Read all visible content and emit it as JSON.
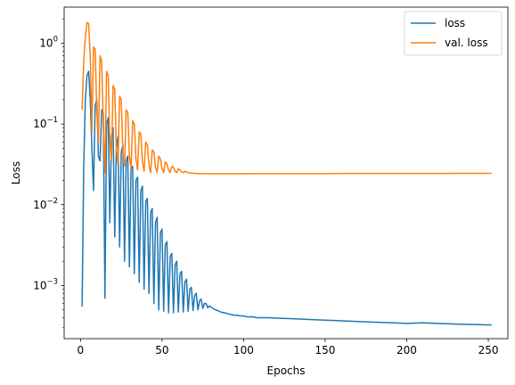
{
  "chart_data": {
    "type": "line",
    "title": "",
    "xlabel": "Epochs",
    "ylabel": "Loss",
    "xlim": [
      -10,
      262
    ],
    "ylim": [
      0.00022,
      2.8
    ],
    "yscale": "log",
    "grid": false,
    "legend_position": "upper right",
    "x_ticks": [
      0,
      50,
      100,
      150,
      200,
      250
    ],
    "x_tick_labels": [
      "0",
      "50",
      "100",
      "150",
      "200",
      "250"
    ],
    "y_ticks": [
      0.001,
      0.01,
      0.1,
      1
    ],
    "y_tick_labels": [
      {
        "base": "10",
        "exp": "−3"
      },
      {
        "base": "10",
        "exp": "−2"
      },
      {
        "base": "10",
        "exp": "−1"
      },
      {
        "base": "10",
        "exp": "0"
      }
    ],
    "series": [
      {
        "name": "loss",
        "color": "#1f77b4",
        "x": [
          1,
          2,
          3,
          4,
          5,
          6,
          7,
          8,
          9,
          10,
          11,
          12,
          13,
          14,
          15,
          16,
          17,
          18,
          19,
          20,
          21,
          22,
          23,
          24,
          25,
          26,
          27,
          28,
          29,
          30,
          31,
          32,
          33,
          34,
          35,
          36,
          37,
          38,
          39,
          40,
          41,
          42,
          43,
          44,
          45,
          46,
          47,
          48,
          49,
          50,
          51,
          52,
          53,
          54,
          55,
          56,
          57,
          58,
          59,
          60,
          61,
          62,
          63,
          64,
          65,
          66,
          67,
          68,
          69,
          70,
          71,
          72,
          73,
          74,
          75,
          76,
          77,
          78,
          79,
          80,
          82,
          84,
          86,
          88,
          90,
          92,
          94,
          96,
          98,
          100,
          102,
          104,
          106,
          108,
          110,
          115,
          120,
          130,
          140,
          150,
          160,
          170,
          180,
          190,
          200,
          210,
          220,
          230,
          240,
          252
        ],
        "y": [
          0.00055,
          0.03,
          0.2,
          0.4,
          0.45,
          0.2,
          0.05,
          0.015,
          0.17,
          0.2,
          0.04,
          0.035,
          0.15,
          0.14,
          0.0007,
          0.1,
          0.12,
          0.006,
          0.07,
          0.09,
          0.004,
          0.05,
          0.07,
          0.003,
          0.045,
          0.055,
          0.002,
          0.035,
          0.04,
          0.0017,
          0.028,
          0.03,
          0.0014,
          0.02,
          0.022,
          0.0011,
          0.015,
          0.017,
          0.0009,
          0.011,
          0.012,
          0.0008,
          0.008,
          0.009,
          0.0006,
          0.006,
          0.007,
          0.0005,
          0.0045,
          0.005,
          0.00048,
          0.0032,
          0.0035,
          0.00046,
          0.0023,
          0.0025,
          0.00046,
          0.0018,
          0.002,
          0.00047,
          0.0014,
          0.0015,
          0.00047,
          0.0011,
          0.0012,
          0.00048,
          0.0009,
          0.00095,
          0.00049,
          0.00075,
          0.0008,
          0.0005,
          0.00065,
          0.00068,
          0.00052,
          0.0006,
          0.0006,
          0.00053,
          0.00056,
          0.00054,
          0.00051,
          0.00049,
          0.00047,
          0.00046,
          0.00045,
          0.00044,
          0.00043,
          0.00043,
          0.00042,
          0.00042,
          0.00041,
          0.00041,
          0.00041,
          0.0004,
          0.0004,
          0.0004,
          0.000395,
          0.000388,
          0.00038,
          0.000373,
          0.000366,
          0.000359,
          0.000352,
          0.000346,
          0.00034,
          0.000345,
          0.000339,
          0.000334,
          0.000329,
          0.000325
        ]
      },
      {
        "name": "val. loss",
        "color": "#ff7f0e",
        "x": [
          1,
          2,
          3,
          4,
          5,
          6,
          7,
          8,
          9,
          10,
          11,
          12,
          13,
          14,
          15,
          16,
          17,
          18,
          19,
          20,
          21,
          22,
          23,
          24,
          25,
          26,
          27,
          28,
          29,
          30,
          31,
          32,
          33,
          34,
          35,
          36,
          37,
          38,
          39,
          40,
          41,
          42,
          43,
          44,
          45,
          46,
          47,
          48,
          49,
          50,
          51,
          52,
          53,
          54,
          55,
          56,
          57,
          58,
          59,
          60,
          61,
          62,
          63,
          64,
          65,
          66,
          67,
          68,
          69,
          70,
          72,
          74,
          76,
          78,
          80,
          85,
          90,
          100,
          110,
          120,
          130,
          140,
          150,
          160,
          170,
          180,
          190,
          200,
          210,
          220,
          230,
          240,
          252
        ],
        "y": [
          0.15,
          0.6,
          1.2,
          1.8,
          1.75,
          0.7,
          0.08,
          0.9,
          0.85,
          0.15,
          0.06,
          0.7,
          0.6,
          0.1,
          0.025,
          0.45,
          0.4,
          0.06,
          0.035,
          0.3,
          0.27,
          0.05,
          0.032,
          0.22,
          0.2,
          0.045,
          0.03,
          0.15,
          0.14,
          0.04,
          0.028,
          0.11,
          0.1,
          0.037,
          0.027,
          0.08,
          0.075,
          0.034,
          0.026,
          0.06,
          0.055,
          0.031,
          0.025,
          0.048,
          0.045,
          0.029,
          0.025,
          0.04,
          0.037,
          0.028,
          0.025,
          0.034,
          0.032,
          0.027,
          0.025,
          0.03,
          0.029,
          0.026,
          0.025,
          0.028,
          0.027,
          0.0255,
          0.025,
          0.026,
          0.0255,
          0.025,
          0.0248,
          0.0247,
          0.0246,
          0.0245,
          0.0244,
          0.0243,
          0.0243,
          0.0242,
          0.0242,
          0.0242,
          0.0242,
          0.0242,
          0.0243,
          0.0243,
          0.0243,
          0.0243,
          0.0243,
          0.0244,
          0.0244,
          0.0244,
          0.0244,
          0.0244,
          0.0244,
          0.0244,
          0.0245,
          0.0245,
          0.0245
        ]
      }
    ]
  }
}
